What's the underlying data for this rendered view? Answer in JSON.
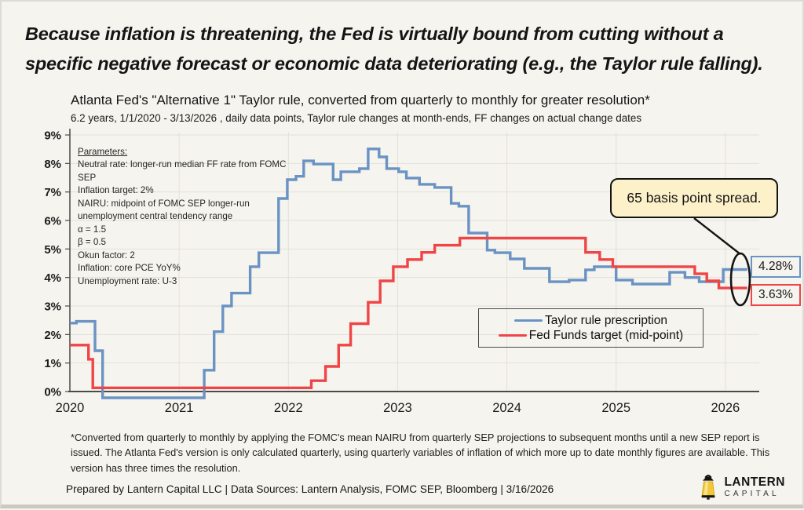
{
  "colors": {
    "blue": "#6a93c4",
    "red": "#ef4546",
    "background": "#f6f4ee",
    "annotation_fill": "#fcf1c9",
    "grid": "#e2e0d9",
    "axis": "#4a4a4a"
  },
  "headline": "Because inflation is threatening, the Fed is virtually bound from cutting without a specific negative forecast or economic data deteriorating (e.g., the Taylor rule falling).",
  "chart_data": {
    "type": "line",
    "step": true,
    "title": "Atlanta Fed's \"Alternative 1\" Taylor rule, converted from quarterly to monthly for greater resolution*",
    "subtitle": "6.2 years, 1/1/2020 - 3/13/2026 , daily data points, Taylor rule changes at month-ends, FF changes on actual change dates",
    "x_range": [
      2020,
      2026.31
    ],
    "y_range": [
      0,
      9
    ],
    "x_tick_labels": [
      "2020",
      "2021",
      "2022",
      "2023",
      "2024",
      "2025",
      "2026"
    ],
    "y_tick_labels": [
      "0%",
      "1%",
      "2%",
      "3%",
      "4%",
      "5%",
      "6%",
      "7%",
      "8%",
      "9%"
    ],
    "grid": true,
    "legend_position": "lower-center-right",
    "series": [
      {
        "name": "Taylor rule prescription",
        "color": "#6a93c4",
        "end_label": "4.28%",
        "points": [
          [
            2020.0,
            2.4
          ],
          [
            2020.06,
            2.46
          ],
          [
            2020.23,
            1.43
          ],
          [
            2020.3,
            -0.22
          ],
          [
            2021.23,
            0.75
          ],
          [
            2021.32,
            2.1
          ],
          [
            2021.4,
            3.0
          ],
          [
            2021.48,
            3.45
          ],
          [
            2021.65,
            4.38
          ],
          [
            2021.73,
            4.87
          ],
          [
            2021.91,
            6.77
          ],
          [
            2021.99,
            7.43
          ],
          [
            2022.07,
            7.55
          ],
          [
            2022.14,
            8.09
          ],
          [
            2022.23,
            7.98
          ],
          [
            2022.41,
            7.43
          ],
          [
            2022.48,
            7.71
          ],
          [
            2022.65,
            7.82
          ],
          [
            2022.73,
            8.51
          ],
          [
            2022.83,
            8.23
          ],
          [
            2022.9,
            7.82
          ],
          [
            2023.01,
            7.71
          ],
          [
            2023.08,
            7.49
          ],
          [
            2023.2,
            7.27
          ],
          [
            2023.34,
            7.16
          ],
          [
            2023.49,
            6.6
          ],
          [
            2023.56,
            6.5
          ],
          [
            2023.65,
            5.56
          ],
          [
            2023.82,
            4.96
          ],
          [
            2023.89,
            4.87
          ],
          [
            2024.03,
            4.65
          ],
          [
            2024.16,
            4.32
          ],
          [
            2024.39,
            3.85
          ],
          [
            2024.57,
            3.91
          ],
          [
            2024.72,
            4.27
          ],
          [
            2024.8,
            4.38
          ],
          [
            2025.0,
            3.91
          ],
          [
            2025.15,
            3.77
          ],
          [
            2025.49,
            4.18
          ],
          [
            2025.63,
            4.0
          ],
          [
            2025.76,
            3.85
          ],
          [
            2025.98,
            4.28
          ],
          [
            2026.2,
            4.28
          ]
        ]
      },
      {
        "name": "Fed Funds target (mid-point)",
        "color": "#ef4546",
        "end_label": "3.63%",
        "points": [
          [
            2020.0,
            1.63
          ],
          [
            2020.17,
            1.13
          ],
          [
            2020.21,
            0.13
          ],
          [
            2022.21,
            0.38
          ],
          [
            2022.34,
            0.88
          ],
          [
            2022.46,
            1.63
          ],
          [
            2022.57,
            2.38
          ],
          [
            2022.73,
            3.13
          ],
          [
            2022.84,
            3.88
          ],
          [
            2022.96,
            4.38
          ],
          [
            2023.09,
            4.63
          ],
          [
            2023.22,
            4.88
          ],
          [
            2023.34,
            5.13
          ],
          [
            2023.57,
            5.38
          ],
          [
            2024.72,
            4.88
          ],
          [
            2024.85,
            4.63
          ],
          [
            2024.97,
            4.38
          ],
          [
            2025.72,
            4.13
          ],
          [
            2025.83,
            3.88
          ],
          [
            2025.94,
            3.63
          ],
          [
            2026.2,
            3.63
          ]
        ]
      }
    ],
    "annotation": {
      "text": "65 basis point spread."
    },
    "parameters_box": {
      "title": "Parameters:",
      "lines": [
        "Neutral rate: longer-run median FF rate from FOMC SEP",
        "Inflation target: 2%",
        "NAIRU: midpoint of FOMC SEP longer-run unemployment central tendency range",
        "α = 1.5",
        "β = 0.5",
        "Okun factor: 2",
        "Inflation: core PCE YoY%",
        "Unemployment rate: U-3"
      ]
    }
  },
  "footnote": "*Converted from quarterly to monthly by applying the FOMC's mean NAIRU from quarterly SEP projections to subsequent months until a new SEP report is issued.  The Atlanta Fed's version is only calculated quarterly, using quarterly variables of inflation of which more up to date monthly figures are available. This version has three times the resolution.",
  "prepared": "Prepared by Lantern Capital LLC | Data Sources: Lantern Analysis, FOMC SEP, Bloomberg | 3/16/2026",
  "logo": {
    "line1": "LANTERN",
    "line2": "CAPITAL"
  }
}
